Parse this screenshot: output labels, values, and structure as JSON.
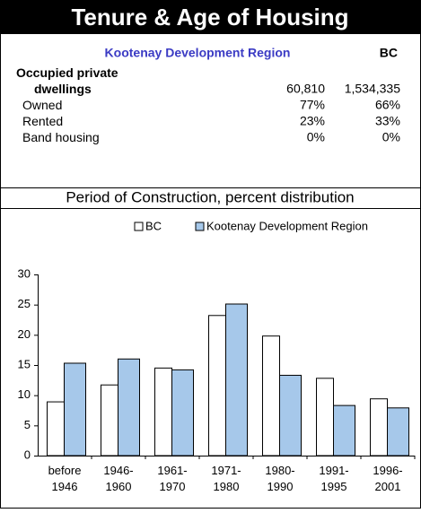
{
  "header": {
    "title": "Tenure & Age of Housing"
  },
  "table": {
    "columns": [
      "Kootenay Development Region",
      "BC"
    ],
    "rows": [
      [
        "Occupied private\ndwellings",
        "60,810",
        "1,534,335"
      ],
      [
        "Owned",
        "77%",
        "66%"
      ],
      [
        "Rented",
        "23%",
        "33%"
      ],
      [
        "Band housing",
        "0%",
        "0%"
      ]
    ]
  },
  "chart_data": {
    "type": "bar",
    "title": "Period of Construction, percent distribution",
    "categories": [
      "before\n1946",
      "1946-\n1960",
      "1961-\n1970",
      "1971-\n1980",
      "1980-\n1990",
      "1991-\n1995",
      "1996-\n2001"
    ],
    "series": [
      {
        "name": "BC",
        "color": "#ffffff",
        "values": [
          8.9,
          11.7,
          14.5,
          23.2,
          19.8,
          12.8,
          9.4
        ]
      },
      {
        "name": "Kootenay Development Region",
        "color": "#a6c8ea",
        "values": [
          15.3,
          16.0,
          14.2,
          25.1,
          13.3,
          8.3,
          7.9
        ]
      }
    ],
    "ylim": [
      0,
      30
    ],
    "yticks": [
      0,
      5,
      10,
      15,
      20,
      25,
      30
    ],
    "grid": false,
    "legend": "top"
  }
}
